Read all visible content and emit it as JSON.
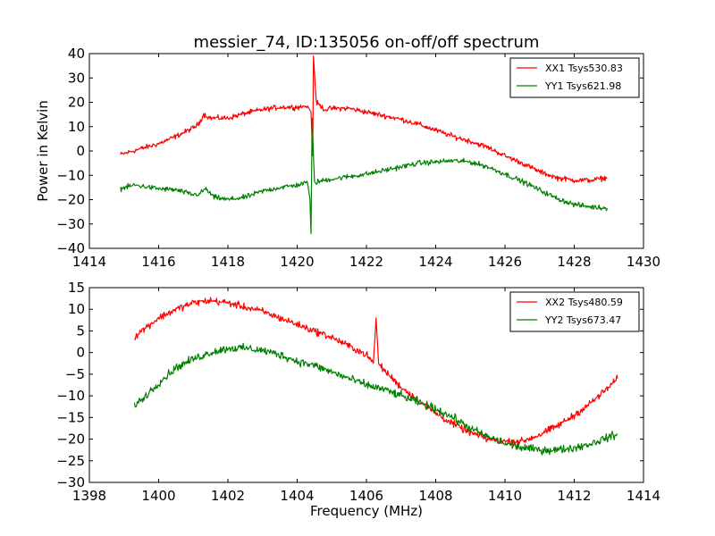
{
  "figure": {
    "title": "messier_74, ID:135056 on-off/off spectrum",
    "ylabel": "Power in Kelvin",
    "xlabel": "Frequency (MHz)"
  },
  "chart_data": [
    {
      "type": "line",
      "title": "messier_74, ID:135056 on-off/off spectrum",
      "xlabel": "",
      "ylabel": "Power in Kelvin",
      "xlim": [
        1414,
        1430
      ],
      "ylim": [
        -40,
        40
      ],
      "xticks": [
        "1414",
        "1416",
        "1418",
        "1420",
        "1422",
        "1424",
        "1426",
        "1428",
        "1430"
      ],
      "yticks": [
        "40",
        "30",
        "20",
        "10",
        "0",
        "−10",
        "−20",
        "−30",
        "−40"
      ],
      "grid": false,
      "legend_position": "top-right",
      "series": [
        {
          "name": "XX1 Tsys530.83",
          "color": "#ff0000",
          "noise": 0.9,
          "points": [
            [
              1414.9,
              -1.5
            ],
            [
              1415.5,
              1.0
            ],
            [
              1416.0,
              3.0
            ],
            [
              1416.5,
              6.0
            ],
            [
              1417.0,
              9.5
            ],
            [
              1417.15,
              11.0
            ],
            [
              1417.3,
              15.0
            ],
            [
              1417.5,
              13.5
            ],
            [
              1418.0,
              13.5
            ],
            [
              1418.5,
              15.5
            ],
            [
              1419.0,
              17.0
            ],
            [
              1419.5,
              18.0
            ],
            [
              1420.0,
              18.0
            ],
            [
              1420.3,
              18.5
            ],
            [
              1420.4,
              16.0
            ],
            [
              1420.45,
              -2.0
            ],
            [
              1420.47,
              39.0
            ],
            [
              1420.55,
              20.0
            ],
            [
              1420.8,
              17.0
            ],
            [
              1421.0,
              17.5
            ],
            [
              1421.5,
              17.5
            ],
            [
              1422.0,
              16.0
            ],
            [
              1422.5,
              14.5
            ],
            [
              1423.0,
              13.0
            ],
            [
              1423.5,
              11.0
            ],
            [
              1424.0,
              8.5
            ],
            [
              1424.5,
              6.0
            ],
            [
              1425.0,
              4.0
            ],
            [
              1425.5,
              1.5
            ],
            [
              1426.0,
              -2.0
            ],
            [
              1426.5,
              -5.0
            ],
            [
              1427.0,
              -8.5
            ],
            [
              1427.5,
              -11.0
            ],
            [
              1428.0,
              -12.0
            ],
            [
              1428.5,
              -12.0
            ],
            [
              1428.95,
              -11.0
            ]
          ]
        },
        {
          "name": "YY1 Tsys621.98",
          "color": "#008000",
          "noise": 0.9,
          "points": [
            [
              1414.9,
              -15.5
            ],
            [
              1415.3,
              -14.0
            ],
            [
              1416.0,
              -15.5
            ],
            [
              1416.5,
              -16.0
            ],
            [
              1417.0,
              -18.0
            ],
            [
              1417.2,
              -17.5
            ],
            [
              1417.35,
              -15.5
            ],
            [
              1417.6,
              -19.0
            ],
            [
              1418.0,
              -20.0
            ],
            [
              1418.5,
              -19.0
            ],
            [
              1419.0,
              -16.5
            ],
            [
              1419.5,
              -15.0
            ],
            [
              1420.0,
              -14.0
            ],
            [
              1420.3,
              -13.0
            ],
            [
              1420.37,
              -20.0
            ],
            [
              1420.4,
              -34.0
            ],
            [
              1420.43,
              13.5
            ],
            [
              1420.5,
              -13.0
            ],
            [
              1420.8,
              -12.0
            ],
            [
              1421.0,
              -11.5
            ],
            [
              1421.5,
              -10.5
            ],
            [
              1422.0,
              -9.5
            ],
            [
              1422.5,
              -8.0
            ],
            [
              1423.0,
              -6.5
            ],
            [
              1423.5,
              -5.0
            ],
            [
              1424.0,
              -4.5
            ],
            [
              1424.5,
              -4.0
            ],
            [
              1425.0,
              -4.5
            ],
            [
              1425.5,
              -6.5
            ],
            [
              1426.0,
              -9.5
            ],
            [
              1426.5,
              -12.5
            ],
            [
              1427.0,
              -16.0
            ],
            [
              1427.5,
              -19.5
            ],
            [
              1428.0,
              -22.0
            ],
            [
              1428.5,
              -23.0
            ],
            [
              1428.95,
              -23.5
            ]
          ]
        }
      ]
    },
    {
      "type": "line",
      "title": "",
      "xlabel": "Frequency (MHz)",
      "ylabel": "",
      "xlim": [
        1398,
        1414
      ],
      "ylim": [
        -30,
        15
      ],
      "xticks": [
        "1398",
        "1400",
        "1402",
        "1404",
        "1406",
        "1408",
        "1410",
        "1412",
        "1414"
      ],
      "yticks": [
        "15",
        "10",
        "5",
        "0",
        "−5",
        "−10",
        "−15",
        "−20",
        "−25",
        "−30"
      ],
      "grid": false,
      "legend_position": "top-right",
      "series": [
        {
          "name": "XX2 Tsys480.59",
          "color": "#ff0000",
          "noise": 0.7,
          "points": [
            [
              1399.3,
              3.5
            ],
            [
              1399.5,
              5.0
            ],
            [
              1400.0,
              8.0
            ],
            [
              1400.5,
              10.0
            ],
            [
              1401.0,
              11.5
            ],
            [
              1401.5,
              12.0
            ],
            [
              1402.0,
              11.5
            ],
            [
              1402.5,
              10.5
            ],
            [
              1403.0,
              9.5
            ],
            [
              1403.5,
              8.0
            ],
            [
              1404.0,
              6.5
            ],
            [
              1404.5,
              5.0
            ],
            [
              1405.0,
              3.5
            ],
            [
              1405.5,
              1.5
            ],
            [
              1406.0,
              -0.5
            ],
            [
              1406.2,
              -2.5
            ],
            [
              1406.28,
              8.0
            ],
            [
              1406.35,
              -2.5
            ],
            [
              1406.5,
              -4.0
            ],
            [
              1407.0,
              -8.0
            ],
            [
              1407.5,
              -11.0
            ],
            [
              1408.0,
              -14.0
            ],
            [
              1408.5,
              -16.5
            ],
            [
              1409.0,
              -18.5
            ],
            [
              1409.5,
              -20.0
            ],
            [
              1410.0,
              -20.5
            ],
            [
              1410.5,
              -20.5
            ],
            [
              1411.0,
              -19.0
            ],
            [
              1411.5,
              -17.0
            ],
            [
              1412.0,
              -14.5
            ],
            [
              1412.5,
              -11.5
            ],
            [
              1413.0,
              -8.0
            ],
            [
              1413.25,
              -6.0
            ]
          ]
        },
        {
          "name": "YY2 Tsys673.47",
          "color": "#008000",
          "noise": 0.8,
          "points": [
            [
              1399.3,
              -12.0
            ],
            [
              1399.5,
              -11.0
            ],
            [
              1400.0,
              -7.0
            ],
            [
              1400.5,
              -3.5
            ],
            [
              1401.0,
              -1.5
            ],
            [
              1401.5,
              0.0
            ],
            [
              1402.0,
              1.0
            ],
            [
              1402.5,
              1.0
            ],
            [
              1403.0,
              0.5
            ],
            [
              1403.5,
              -0.5
            ],
            [
              1404.0,
              -2.0
            ],
            [
              1404.5,
              -3.0
            ],
            [
              1405.0,
              -4.5
            ],
            [
              1405.5,
              -6.0
            ],
            [
              1406.0,
              -7.5
            ],
            [
              1406.5,
              -8.5
            ],
            [
              1407.0,
              -10.0
            ],
            [
              1407.5,
              -11.5
            ],
            [
              1408.0,
              -13.0
            ],
            [
              1408.5,
              -15.0
            ],
            [
              1409.0,
              -17.5
            ],
            [
              1409.5,
              -19.5
            ],
            [
              1410.0,
              -21.0
            ],
            [
              1410.5,
              -22.0
            ],
            [
              1411.0,
              -22.5
            ],
            [
              1411.5,
              -22.5
            ],
            [
              1412.0,
              -22.0
            ],
            [
              1412.5,
              -21.0
            ],
            [
              1413.0,
              -19.5
            ],
            [
              1413.25,
              -19.0
            ]
          ]
        }
      ]
    }
  ]
}
